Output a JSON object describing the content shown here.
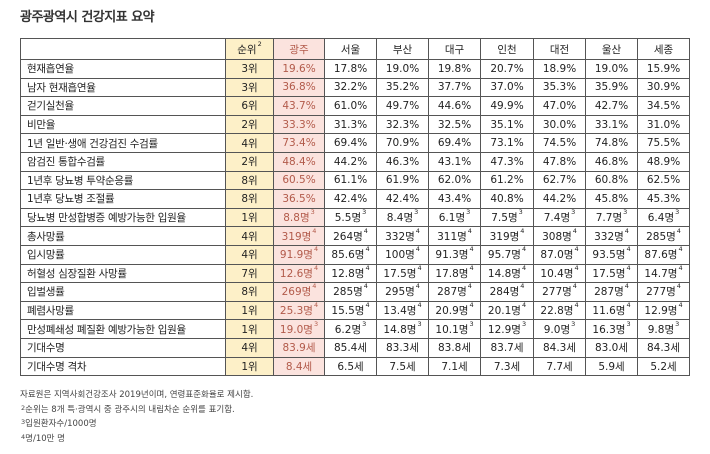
{
  "title": "광주광역시 건강지표 요약",
  "headers": [
    {
      "label": "",
      "sup": ""
    },
    {
      "label": "순위",
      "sup": "2"
    },
    {
      "label": "광주",
      "sup": ""
    },
    {
      "label": "서울",
      "sup": ""
    },
    {
      "label": "부산",
      "sup": ""
    },
    {
      "label": "대구",
      "sup": ""
    },
    {
      "label": "인천",
      "sup": ""
    },
    {
      "label": "대전",
      "sup": ""
    },
    {
      "label": "울산",
      "sup": ""
    },
    {
      "label": "세종",
      "sup": ""
    }
  ],
  "rows": [
    {
      "name": "현재흡연율",
      "rank": "3위",
      "vals": [
        "19.6%",
        "17.8%",
        "19.0%",
        "19.8%",
        "20.7%",
        "18.9%",
        "19.0%",
        "15.9%"
      ],
      "sups": [
        "",
        "",
        "",
        "",
        "",
        "",
        "",
        ""
      ]
    },
    {
      "name": "남자 현재흡연율",
      "rank": "3위",
      "vals": [
        "36.8%",
        "32.2%",
        "35.2%",
        "37.7%",
        "37.0%",
        "35.3%",
        "35.9%",
        "30.9%"
      ],
      "sups": [
        "",
        "",
        "",
        "",
        "",
        "",
        "",
        ""
      ]
    },
    {
      "name": "걷기실천율",
      "rank": "6위",
      "vals": [
        "43.7%",
        "61.0%",
        "49.7%",
        "44.6%",
        "49.9%",
        "47.0%",
        "42.7%",
        "34.5%"
      ],
      "sups": [
        "",
        "",
        "",
        "",
        "",
        "",
        "",
        ""
      ]
    },
    {
      "name": "비만율",
      "rank": "2위",
      "vals": [
        "33.3%",
        "31.3%",
        "32.3%",
        "32.5%",
        "35.1%",
        "30.0%",
        "33.1%",
        "31.0%"
      ],
      "sups": [
        "",
        "",
        "",
        "",
        "",
        "",
        "",
        ""
      ]
    },
    {
      "name": "1년 일반·생애 건강검진 수검률",
      "rank": "4위",
      "vals": [
        "73.4%",
        "69.4%",
        "70.9%",
        "69.4%",
        "73.1%",
        "74.5%",
        "74.8%",
        "75.5%"
      ],
      "sups": [
        "",
        "",
        "",
        "",
        "",
        "",
        "",
        ""
      ]
    },
    {
      "name": "암검진 통합수검률",
      "rank": "2위",
      "vals": [
        "48.4%",
        "44.2%",
        "46.3%",
        "43.1%",
        "47.3%",
        "47.8%",
        "46.8%",
        "48.9%"
      ],
      "sups": [
        "",
        "",
        "",
        "",
        "",
        "",
        "",
        ""
      ]
    },
    {
      "name": "1년후 당뇨병 투약순응률",
      "rank": "8위",
      "vals": [
        "60.5%",
        "61.1%",
        "61.9%",
        "62.0%",
        "61.2%",
        "62.7%",
        "60.8%",
        "62.5%"
      ],
      "sups": [
        "",
        "",
        "",
        "",
        "",
        "",
        "",
        ""
      ]
    },
    {
      "name": "1년후 당뇨병 조절률",
      "rank": "8위",
      "vals": [
        "36.5%",
        "42.4%",
        "42.4%",
        "43.4%",
        "40.8%",
        "44.2%",
        "45.8%",
        "45.3%"
      ],
      "sups": [
        "",
        "",
        "",
        "",
        "",
        "",
        "",
        ""
      ]
    },
    {
      "name": "당뇨병 만성합병증 예방가능한 입원율",
      "rank": "1위",
      "vals": [
        "8.8명",
        "5.5명",
        "8.4명",
        "6.1명",
        "7.5명",
        "7.4명",
        "7.7명",
        "6.4명"
      ],
      "sups": [
        "3",
        "3",
        "3",
        "3",
        "3",
        "3",
        "3",
        "3"
      ]
    },
    {
      "name": "총사망률",
      "rank": "4위",
      "vals": [
        "319명",
        "264명",
        "332명",
        "311명",
        "319명",
        "308명",
        "332명",
        "285명"
      ],
      "sups": [
        "4",
        "4",
        "4",
        "4",
        "4",
        "4",
        "4",
        "4"
      ]
    },
    {
      "name": "입시망률",
      "rank": "4위",
      "vals": [
        "91.9명",
        "85.6명",
        "100명",
        "91.3명",
        "95.7명",
        "87.0명",
        "93.5명",
        "87.6명"
      ],
      "sups": [
        "4",
        "4",
        "4",
        "4",
        "4",
        "4",
        "4",
        "4"
      ]
    },
    {
      "name": "허혈성 심장질환 사망률",
      "rank": "7위",
      "vals": [
        "12.6명",
        "12.8명",
        "17.5명",
        "17.8명",
        "14.8명",
        "10.4명",
        "17.5명",
        "14.7명"
      ],
      "sups": [
        "4",
        "4",
        "4",
        "4",
        "4",
        "4",
        "4",
        "4"
      ]
    },
    {
      "name": "입벌생률",
      "rank": "8위",
      "vals": [
        "269명",
        "285명",
        "295명",
        "287명",
        "284명",
        "277명",
        "287명",
        "277명"
      ],
      "sups": [
        "4",
        "4",
        "4",
        "4",
        "4",
        "4",
        "4",
        "4"
      ]
    },
    {
      "name": "폐렴사망률",
      "rank": "1위",
      "vals": [
        "25.3명",
        "15.5명",
        "13.4명",
        "20.9명",
        "20.1명",
        "22.8명",
        "11.6명",
        "12.9명"
      ],
      "sups": [
        "4",
        "4",
        "4",
        "4",
        "4",
        "4",
        "4",
        "4"
      ]
    },
    {
      "name": "만성폐쇄성 폐질환 예방가능한 입원율",
      "rank": "1위",
      "vals": [
        "19.0명",
        "6.2명",
        "14.8명",
        "10.1명",
        "12.9명",
        "9.0명",
        "16.3명",
        "9.8명"
      ],
      "sups": [
        "3",
        "3",
        "3",
        "3",
        "3",
        "3",
        "3",
        "3"
      ]
    },
    {
      "name": "기대수명",
      "rank": "4위",
      "vals": [
        "83.9세",
        "85.4세",
        "83.3세",
        "83.8세",
        "83.7세",
        "84.3세",
        "83.0세",
        "84.3세"
      ],
      "sups": [
        "",
        "",
        "",
        "",
        "",
        "",
        "",
        ""
      ]
    },
    {
      "name": "기대수명 격차",
      "rank": "1위",
      "vals": [
        "8.4세",
        "6.5세",
        "7.5세",
        "7.1세",
        "7.3세",
        "7.7세",
        "5.9세",
        "5.2세"
      ],
      "sups": [
        "",
        "",
        "",
        "",
        "",
        "",
        "",
        ""
      ]
    }
  ],
  "notes": [
    {
      "sup": "",
      "text": "자료원은 지역사회건강조사 2019년이며, 연령표준화율로 제시함."
    },
    {
      "sup": "2",
      "text": "순위는 8개 특·광역시 중 광주시의 내림차순 순위를 표기함."
    },
    {
      "sup": "3",
      "text": "입원환자수/1000명"
    },
    {
      "sup": "4",
      "text": "명/10만 명"
    }
  ]
}
